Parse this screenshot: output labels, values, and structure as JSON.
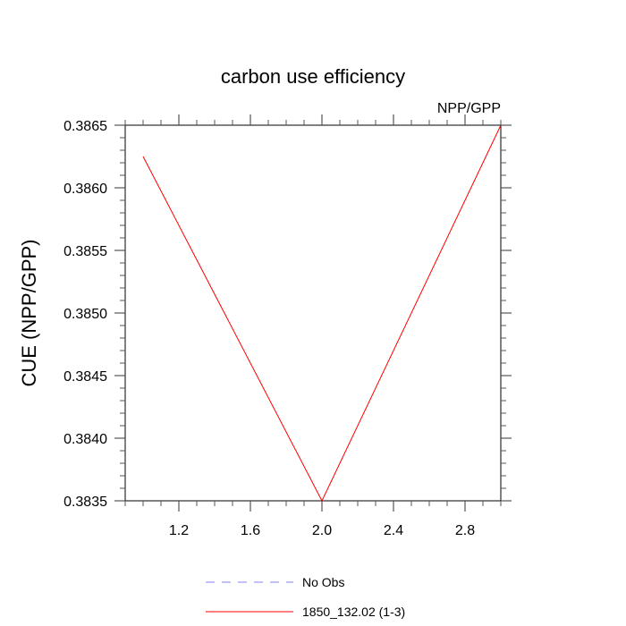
{
  "chart_data": {
    "type": "line",
    "title": "carbon use efficiency",
    "subtitle": "NPP/GPP",
    "xlabel": "",
    "ylabel": "CUE  (NPP/GPP)",
    "xlim": [
      0.9,
      3.0
    ],
    "ylim": [
      0.3835,
      0.3865
    ],
    "x_major_ticks": [
      1.2,
      1.6,
      2.0,
      2.4,
      2.8
    ],
    "x_tick_labels": [
      "1.2",
      "1.6",
      "2.0",
      "2.4",
      "2.8"
    ],
    "y_major_ticks": [
      0.3835,
      0.384,
      0.3845,
      0.385,
      0.3855,
      0.386,
      0.3865
    ],
    "y_tick_labels": [
      "0.3835",
      "0.3840",
      "0.3845",
      "0.3850",
      "0.3855",
      "0.3860",
      "0.3865"
    ],
    "grid": false,
    "legend_position": "bottom",
    "series": [
      {
        "name": "1850_132.02 (1-3)",
        "color": "#ff0000",
        "dash": "solid",
        "x": [
          1.0,
          2.0,
          3.0
        ],
        "y": [
          0.38625,
          0.3835,
          0.3865
        ]
      }
    ],
    "legend": [
      {
        "label": "No Obs",
        "color": "#8080ff",
        "dash": "dashed"
      },
      {
        "label": "1850_132.02 (1-3)",
        "color": "#ff0000",
        "dash": "solid"
      }
    ]
  }
}
